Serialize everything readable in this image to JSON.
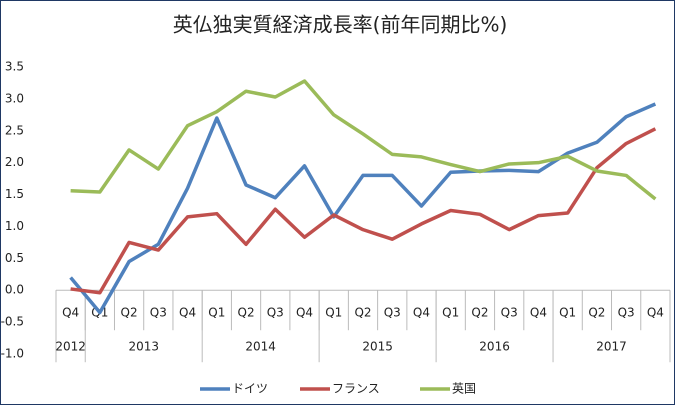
{
  "chart_data": {
    "type": "line",
    "title": "英仏独実質経済成長率(前年同期比%)",
    "categories": [
      "Q4",
      "Q1",
      "Q2",
      "Q3",
      "Q4",
      "Q1",
      "Q2",
      "Q3",
      "Q4",
      "Q1",
      "Q2",
      "Q3",
      "Q4",
      "Q1",
      "Q2",
      "Q3",
      "Q4",
      "Q1",
      "Q2",
      "Q3",
      "Q4"
    ],
    "year_groups": [
      {
        "label": "2012",
        "span": 1
      },
      {
        "label": "2013",
        "span": 4
      },
      {
        "label": "2014",
        "span": 4
      },
      {
        "label": "2015",
        "span": 4
      },
      {
        "label": "2016",
        "span": 4
      },
      {
        "label": "2017",
        "span": 4
      }
    ],
    "series": [
      {
        "name": "ドイツ",
        "color": "#4f81bd",
        "values": [
          0.2,
          -0.35,
          0.45,
          0.72,
          1.6,
          2.7,
          1.65,
          1.45,
          1.95,
          1.15,
          1.8,
          1.8,
          1.32,
          1.85,
          1.87,
          1.88,
          1.86,
          2.15,
          2.32,
          2.72,
          2.92
        ]
      },
      {
        "name": "フランス",
        "color": "#c0504d",
        "values": [
          0.02,
          -0.04,
          0.75,
          0.63,
          1.15,
          1.2,
          0.72,
          1.27,
          0.83,
          1.18,
          0.95,
          0.8,
          1.04,
          1.25,
          1.19,
          0.95,
          1.17,
          1.21,
          1.92,
          2.3,
          2.53
        ]
      },
      {
        "name": "英国",
        "color": "#9bbb59",
        "values": [
          1.56,
          1.54,
          2.2,
          1.9,
          2.58,
          2.8,
          3.12,
          3.03,
          3.28,
          2.75,
          2.45,
          2.13,
          2.09,
          1.97,
          1.86,
          1.98,
          2.0,
          2.1,
          1.87,
          1.8,
          1.43
        ]
      }
    ],
    "ylim": [
      -1.0,
      3.5
    ],
    "yticks": [
      {
        "value": -1.0,
        "label": "-1.0"
      },
      -0.5,
      {
        "value": 0,
        "label": "0.0"
      },
      0.5,
      {
        "value": 1.0,
        "label": "1.0"
      },
      1.5,
      {
        "value": 2.0,
        "label": "2.0"
      },
      2.5,
      {
        "value": 3.0,
        "label": "3.0"
      },
      3.5
    ],
    "grid": false,
    "legend": "bottom"
  }
}
